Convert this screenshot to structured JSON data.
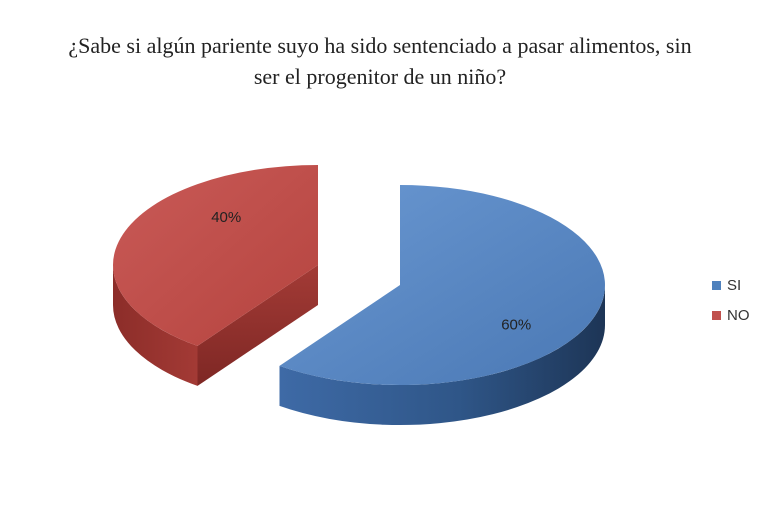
{
  "chart_data": {
    "type": "pie",
    "title": "¿Sabe si algún pariente suyo ha sido sentenciado a pasar alimentos, sin ser el progenitor de un niño?",
    "categories": [
      "SI",
      "NO"
    ],
    "values": [
      60,
      40
    ],
    "data_labels": [
      "60%",
      "40%"
    ],
    "legend_position": "right",
    "three_d": true,
    "exploded": true,
    "colors": [
      "#4F81BD",
      "#C0504D"
    ]
  }
}
